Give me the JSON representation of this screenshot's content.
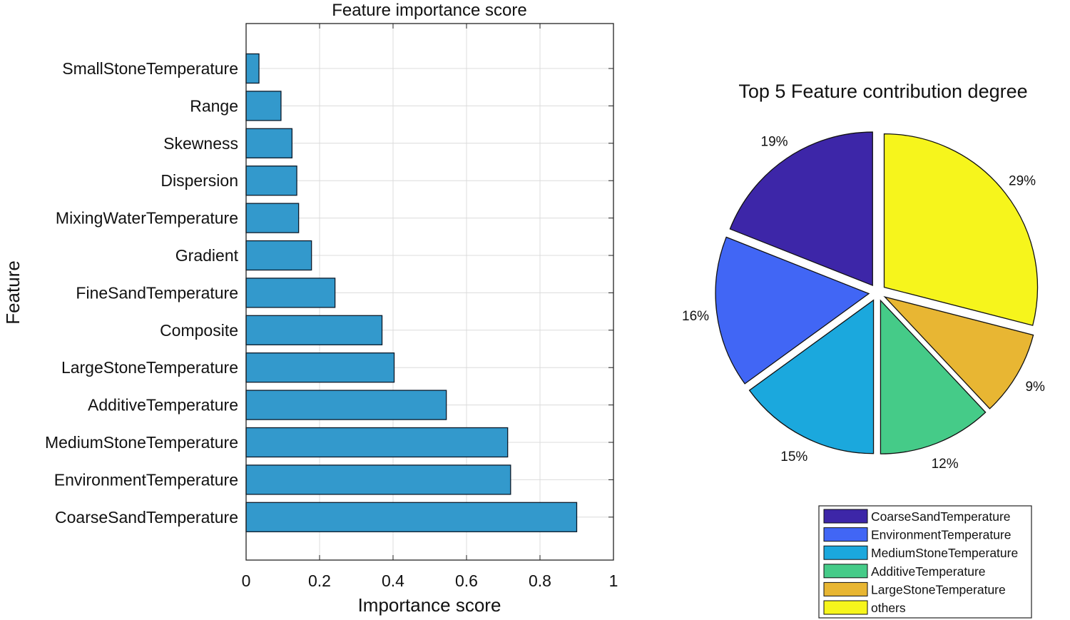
{
  "chart_data": [
    {
      "type": "bar",
      "orientation": "horizontal",
      "title": "Feature importance score",
      "xlabel": "Importance score",
      "ylabel": "Feature",
      "xlim": [
        0,
        1
      ],
      "xticks": [
        "0",
        "0.2",
        "0.4",
        "0.6",
        "0.8",
        "1"
      ],
      "grid": true,
      "bar_color": "#3399CC",
      "categories": [
        "SmallStoneTemperature",
        "Range",
        "Skewness",
        "Dispersion",
        "MixingWaterTemperature",
        "Gradient",
        "FineSandTemperature",
        "Composite",
        "LargeStoneTemperature",
        "AdditiveTemperature",
        "MediumStoneTemperature",
        "EnvironmentTemperature",
        "CoarseSandTemperature"
      ],
      "values": [
        0.035,
        0.095,
        0.125,
        0.138,
        0.143,
        0.178,
        0.242,
        0.37,
        0.403,
        0.545,
        0.712,
        0.72,
        0.9
      ]
    },
    {
      "type": "pie",
      "title": "Top 5 Feature contribution degree",
      "exploded": true,
      "legend_position": "bottom-right",
      "slices": [
        {
          "name": "CoarseSandTemperature",
          "value": 19,
          "label": "19%",
          "color": "#3D26A8"
        },
        {
          "name": "EnvironmentTemperature",
          "value": 16,
          "label": "16%",
          "color": "#4166F5"
        },
        {
          "name": "MediumStoneTemperature",
          "value": 15,
          "label": "15%",
          "color": "#1BA8DD"
        },
        {
          "name": "AdditiveTemperature",
          "value": 12,
          "label": "12%",
          "color": "#45CB88"
        },
        {
          "name": "LargeStoneTemperature",
          "value": 9,
          "label": "9%",
          "color": "#E8B633"
        },
        {
          "name": "others",
          "value": 29,
          "label": "29%",
          "color": "#F6F51C"
        }
      ]
    }
  ]
}
